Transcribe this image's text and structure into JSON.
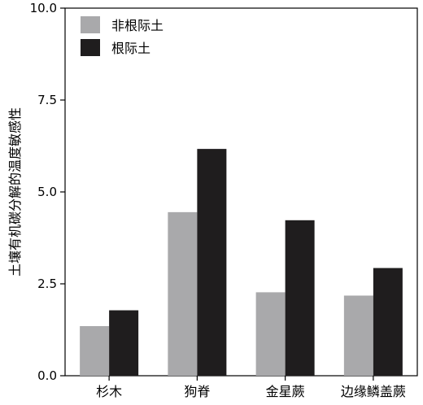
{
  "chart_data": {
    "type": "bar",
    "title": "",
    "xlabel": "",
    "ylabel": "土壤有机碳分解的温度敏感性",
    "ylim": [
      0,
      10
    ],
    "yticks": [
      "0.0",
      "2.5",
      "5.0",
      "7.5",
      "10.0"
    ],
    "categories": [
      "杉木",
      "狗脊",
      "金星蕨",
      "边缘鳞盖蕨"
    ],
    "series": [
      {
        "name": "非根际土",
        "color": "#a9a9ab",
        "values": [
          1.35,
          4.45,
          2.27,
          2.18
        ]
      },
      {
        "name": "根际土",
        "color": "#1f1d1e",
        "values": [
          1.78,
          6.17,
          4.23,
          2.93
        ]
      }
    ],
    "legend_position": "top-left",
    "grid": false
  }
}
